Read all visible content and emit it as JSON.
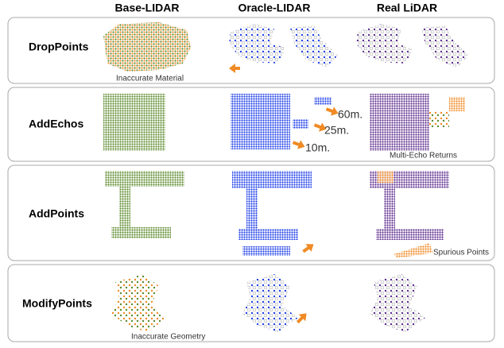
{
  "columns": [
    "Base-LIDAR",
    "Oracle-LIDAR",
    "Real LiDAR"
  ],
  "rows": [
    {
      "label": "DropPoints",
      "annotations": [
        "Inaccurate Material"
      ]
    },
    {
      "label": "AddEchos",
      "annotations": [
        "60m.",
        "25m.",
        "10m.",
        "Multi-Echo Returns"
      ]
    },
    {
      "label": "AddPoints",
      "annotations": [
        "Spurious Points"
      ]
    },
    {
      "label": "ModifyPoints",
      "annotations": [
        "Inaccurate Geometry"
      ]
    }
  ]
}
